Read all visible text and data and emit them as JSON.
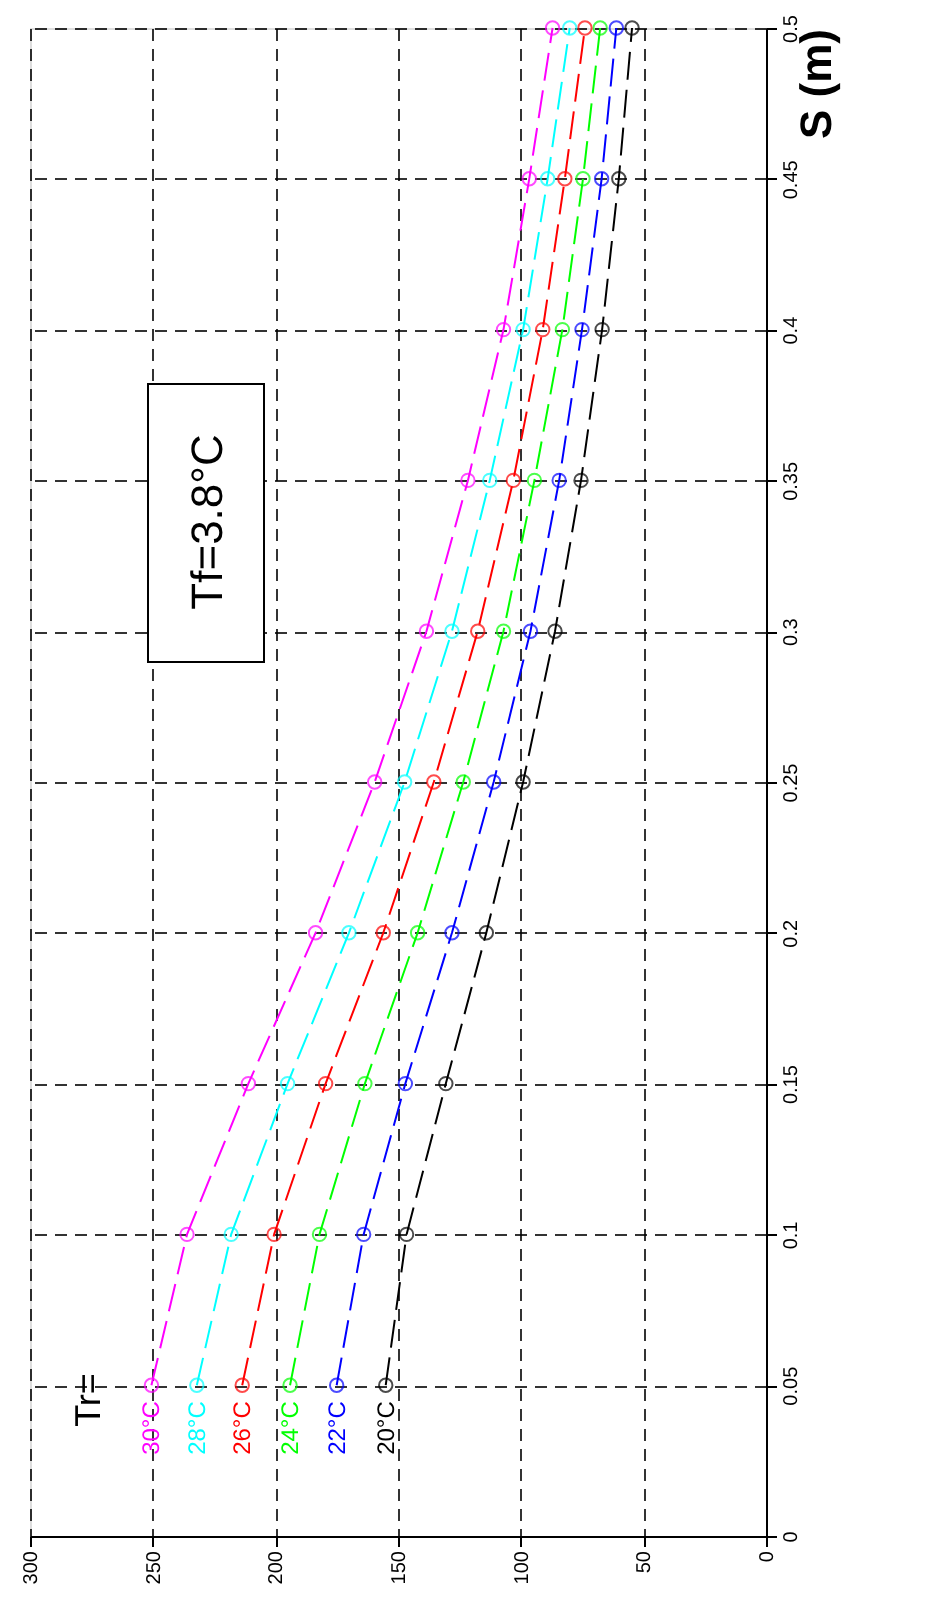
{
  "chart_data": {
    "type": "line",
    "ylabel": "S (m)",
    "series": [
      {
        "name": "20°C",
        "color": "#000000",
        "x": [
          155,
          146.5,
          130.5,
          114,
          99,
          86,
          75.4,
          66.8,
          60,
          54.6
        ],
        "values": [
          0.05,
          0.1,
          0.15,
          0.2,
          0.25,
          0.3,
          0.35,
          0.4,
          0.45,
          0.5
        ]
      },
      {
        "name": "22°C",
        "color": "#0000ff",
        "x": [
          175,
          164,
          147,
          128,
          111,
          96,
          84.3,
          75,
          67,
          61
        ],
        "values": [
          0.05,
          0.1,
          0.15,
          0.2,
          0.25,
          0.3,
          0.35,
          0.4,
          0.45,
          0.5
        ]
      },
      {
        "name": "24°C",
        "color": "#00ff00",
        "x": [
          194,
          182,
          163.5,
          142,
          123.4,
          107,
          94.4,
          83,
          74.6,
          67.6
        ],
        "values": [
          0.05,
          0.1,
          0.15,
          0.2,
          0.25,
          0.3,
          0.35,
          0.4,
          0.45,
          0.5
        ]
      },
      {
        "name": "26°C",
        "color": "#ff0000",
        "x": [
          213.5,
          200.5,
          179.5,
          156,
          135.4,
          117.5,
          103,
          91,
          82,
          73.8
        ],
        "values": [
          0.05,
          0.1,
          0.15,
          0.2,
          0.25,
          0.3,
          0.35,
          0.4,
          0.45,
          0.5
        ]
      },
      {
        "name": "28°C",
        "color": "#00ffff",
        "x": [
          232,
          218,
          195,
          170,
          147.3,
          128,
          112.6,
          99,
          89,
          80
        ],
        "values": [
          0.05,
          0.1,
          0.15,
          0.2,
          0.25,
          0.3,
          0.35,
          0.4,
          0.45,
          0.5
        ]
      },
      {
        "name": "30°C",
        "color": "#ff00ff",
        "x": [
          250.5,
          236,
          211,
          183.6,
          159.5,
          138.4,
          121.5,
          107,
          96.5,
          87
        ],
        "values": [
          0.05,
          0.1,
          0.15,
          0.2,
          0.25,
          0.3,
          0.35,
          0.4,
          0.45,
          0.5
        ]
      }
    ],
    "annotations": [
      "Tr=",
      "Tf=3.8°C"
    ],
    "xlim": [
      300,
      0
    ],
    "xticks": [
      0,
      50,
      100,
      150,
      200,
      250,
      300
    ],
    "ylim": [
      0,
      0.5
    ],
    "yticks": [
      0,
      0.05,
      0.1,
      0.15,
      0.2,
      0.25,
      0.3,
      0.35,
      0.4,
      0.45,
      0.5
    ],
    "grid": true,
    "legend": false,
    "marker": "circle",
    "line_style": "dashed"
  }
}
